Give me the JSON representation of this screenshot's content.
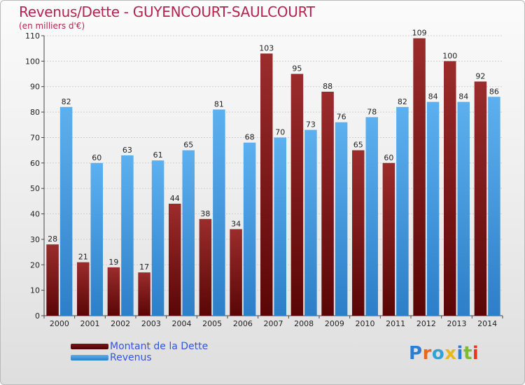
{
  "header": {
    "title": "Revenus/Dette - GUYENCOURT-SAULCOURT",
    "subtitle": "(en milliers d'€)"
  },
  "chart_data": {
    "type": "bar",
    "title": "Revenus/Dette - GUYENCOURT-SAULCOURT",
    "subtitle": "(en milliers d'€)",
    "xlabel": "",
    "ylabel": "",
    "categories": [
      "2000",
      "2001",
      "2002",
      "2003",
      "2004",
      "2005",
      "2006",
      "2007",
      "2008",
      "2009",
      "2010",
      "2011",
      "2012",
      "2013",
      "2014"
    ],
    "series": [
      {
        "name": "Montant de la Dette",
        "color": "#8b1a1a",
        "values": [
          28,
          21,
          19,
          17,
          44,
          38,
          34,
          103,
          95,
          88,
          65,
          60,
          109,
          100,
          92
        ]
      },
      {
        "name": "Revenus",
        "color": "#4a9ee0",
        "values": [
          82,
          60,
          63,
          61,
          65,
          81,
          68,
          70,
          73,
          76,
          78,
          82,
          84,
          84,
          86
        ]
      }
    ],
    "ylim": [
      0,
      110
    ],
    "yticks": [
      0,
      10,
      20,
      30,
      40,
      50,
      60,
      70,
      80,
      90,
      100,
      110
    ],
    "grid": true,
    "legend": "bottom-left"
  },
  "legend": {
    "items": [
      {
        "label": "Montant de la Dette",
        "color": "#6b1010"
      },
      {
        "label": "Revenus",
        "color": "#3f96dc"
      }
    ]
  },
  "logo": {
    "text": "Proxiti",
    "colors": [
      "#2a7fd4",
      "#e8681c",
      "#34a0d8",
      "#e8b81c",
      "#2a7fd4",
      "#7bbd2c",
      "#e8381c"
    ]
  }
}
